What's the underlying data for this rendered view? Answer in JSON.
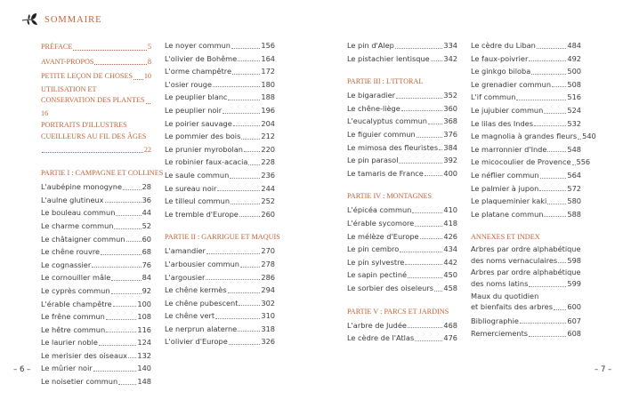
{
  "header": {
    "title": "SOMMAIRE",
    "icon": "leaf-sprig-icon"
  },
  "colors": {
    "accent": "#c0643a",
    "text": "#3a3a3a"
  },
  "columns": [
    [
      {
        "type": "head",
        "label": "PRÉFACE",
        "page": "5"
      },
      {
        "type": "head",
        "label": "AVANT-PROPOS",
        "page": "8"
      },
      {
        "type": "head",
        "label": "PETITE LEÇON DE CHOSES",
        "page": "10"
      },
      {
        "type": "head",
        "line1": "UTILISATION ET",
        "label": "CONSERVATION DES PLANTES",
        "page": "16"
      },
      {
        "type": "head",
        "line1": "PORTRAITS D'ILLUSTRES",
        "label": "CUEILLEURS AU FIL DES ÂGES",
        "page": "22"
      },
      {
        "type": "section",
        "label": "PARTIE I : CAMPAGNE ET COLLINES"
      },
      {
        "label": "L'aubépine monogyne",
        "page": "28"
      },
      {
        "label": "L'aulne glutineux",
        "page": "36"
      },
      {
        "label": "Le bouleau commun",
        "page": "44"
      },
      {
        "label": "Le charme commun",
        "page": "52"
      },
      {
        "label": "Le châtaigner commun",
        "page": "60"
      },
      {
        "label": "Le chêne rouvre",
        "page": "68"
      },
      {
        "label": "Le cognassier",
        "page": "76"
      },
      {
        "label": "Le cornouiller mâle",
        "page": "84"
      },
      {
        "label": "Le cyprès commun",
        "page": "92"
      },
      {
        "label": "L'érable champêtre",
        "page": "100"
      },
      {
        "label": "Le frêne commun",
        "page": "108"
      },
      {
        "label": "Le hêtre commun",
        "page": "116"
      },
      {
        "label": "Le laurier noble",
        "page": "124"
      },
      {
        "label": "Le merisier des oiseaux",
        "page": "132"
      },
      {
        "label": "Le mûrier noir",
        "page": "140"
      },
      {
        "label": "Le noisetier commun",
        "page": "148"
      }
    ],
    [
      {
        "label": "Le noyer commun",
        "page": "156"
      },
      {
        "label": "L'olivier de Bohême",
        "page": "164"
      },
      {
        "label": "L'orme champêtre",
        "page": "172"
      },
      {
        "label": "L'osier rouge",
        "page": "180"
      },
      {
        "label": "Le peuplier blanc",
        "page": "188"
      },
      {
        "label": "Le peuplier noir",
        "page": "196"
      },
      {
        "label": "Le poirier sauvage",
        "page": "204"
      },
      {
        "label": "Le pommier des bois",
        "page": "212"
      },
      {
        "label": "Le prunier myrobolan",
        "page": "220"
      },
      {
        "label": "Le robinier faux-acacia",
        "page": "228"
      },
      {
        "label": "Le saule commun",
        "page": "236"
      },
      {
        "label": "Le sureau noir",
        "page": "244"
      },
      {
        "label": "Le tilleul commun",
        "page": "252"
      },
      {
        "label": "Le tremble d'Europe",
        "page": "260"
      },
      {
        "type": "section",
        "label": "PARTIE II : GARRIGUE ET MAQUIS"
      },
      {
        "label": "L'amandier",
        "page": "270"
      },
      {
        "label": "L'arbousier commun",
        "page": "278"
      },
      {
        "label": "L'argousier",
        "page": "286"
      },
      {
        "label": "Le chêne kermès",
        "page": "294"
      },
      {
        "label": "Le chêne pubescent",
        "page": "302"
      },
      {
        "label": "Le chêne vert",
        "page": "310"
      },
      {
        "label": "Le nerprun alaterne",
        "page": "318"
      },
      {
        "label": "L'olivier d'Europe",
        "page": "326"
      }
    ],
    [
      {
        "label": "Le pin d'Alep",
        "page": "334"
      },
      {
        "label": "Le pistachier lentisque",
        "page": "342"
      },
      {
        "type": "section",
        "label": "PARTIE III : L'ITTORAL"
      },
      {
        "label": "Le bigaradier",
        "page": "352"
      },
      {
        "label": "Le chêne-liège",
        "page": "360"
      },
      {
        "label": "L'eucalyptus commun",
        "page": "368"
      },
      {
        "label": "Le figuier commun",
        "page": "376"
      },
      {
        "label": "Le mimosa des fleuristes",
        "page": "384"
      },
      {
        "label": "Le pin parasol",
        "page": "392"
      },
      {
        "label": "Le tamaris de France",
        "page": "400"
      },
      {
        "type": "section",
        "label": "PARTIE IV : MONTAGNES"
      },
      {
        "label": "L'épicéa commun",
        "page": "410"
      },
      {
        "label": "L'érable sycomore",
        "page": "418"
      },
      {
        "label": "Le mélèze d'Europe",
        "page": "426"
      },
      {
        "label": "Le pin cembro",
        "page": "434"
      },
      {
        "label": "Le pin sylvestre",
        "page": "442"
      },
      {
        "label": "Le sapin pectiné",
        "page": "450"
      },
      {
        "label": "Le sorbier des oiseleurs",
        "page": "458"
      },
      {
        "type": "section",
        "label": "PARTIE V : PARCS ET JARDINS"
      },
      {
        "label": "L'arbre de Judée",
        "page": "468"
      },
      {
        "label": "Le cèdre de l'Atlas",
        "page": "476"
      }
    ],
    [
      {
        "label": "Le cèdre du Liban",
        "page": "484"
      },
      {
        "label": "Le faux-poivrier",
        "page": "492"
      },
      {
        "label": "Le ginkgo biloba",
        "page": "500"
      },
      {
        "label": "Le grenadier commun",
        "page": "508"
      },
      {
        "label": "L'if commun",
        "page": "516"
      },
      {
        "label": "Le jujubier commun",
        "page": "524"
      },
      {
        "label": "Le lilas des Indes",
        "page": "532"
      },
      {
        "label": "Le magnolia à grandes fleurs",
        "page": "540"
      },
      {
        "label": "Le marronnier d'Inde",
        "page": "548"
      },
      {
        "label": "Le micocoulier de Provence",
        "page": "556"
      },
      {
        "label": "Le néflier commun",
        "page": "564"
      },
      {
        "label": "Le palmier à jupon",
        "page": "572"
      },
      {
        "label": "Le plaqueminier kaki",
        "page": "580"
      },
      {
        "label": "Le platane commun",
        "page": "588"
      },
      {
        "type": "section",
        "label": "ANNEXES ET INDEX"
      },
      {
        "line1": "Arbres par ordre alphabétique",
        "label": "des noms vernaculaires",
        "page": "598"
      },
      {
        "line1": "Arbres par ordre alphabétique",
        "label": "des noms latins",
        "page": "599"
      },
      {
        "line1": "Maux du quotidien",
        "label": "et bienfaits des arbres",
        "page": "600"
      },
      {
        "label": "Bibliographie",
        "page": "607"
      },
      {
        "label": "Remerciements",
        "page": "608"
      }
    ]
  ],
  "footer": {
    "left_page": "– 6 –",
    "right_page": "– 7 –"
  }
}
